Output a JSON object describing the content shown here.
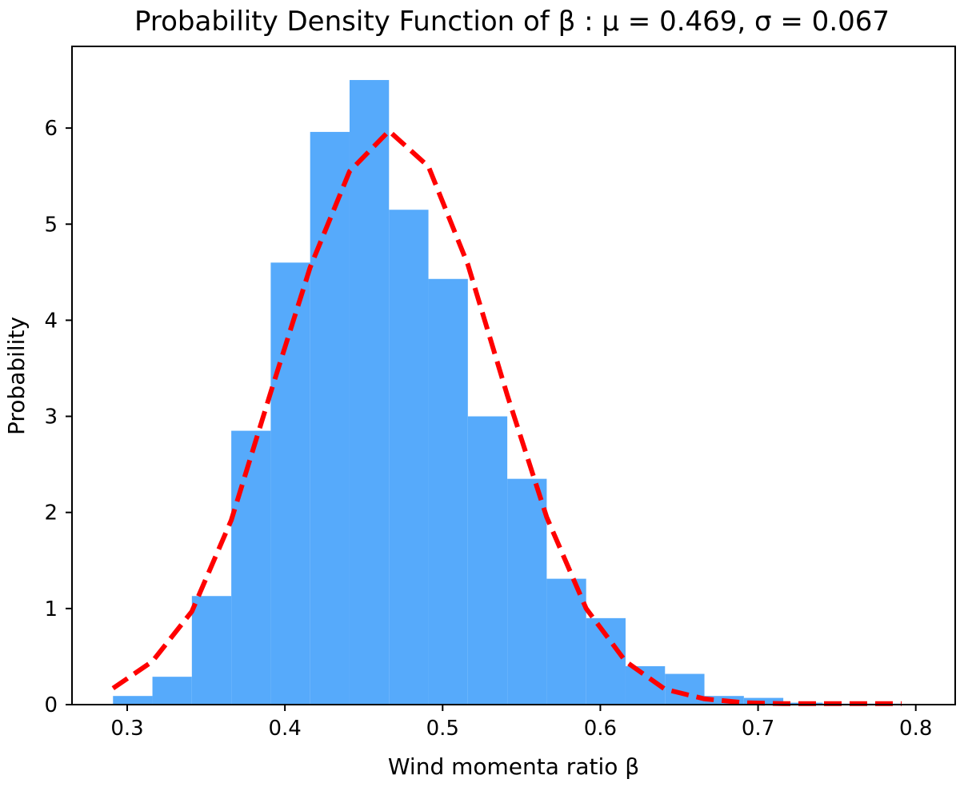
{
  "chart_data": {
    "type": "bar",
    "title": "Probability Density Function of β :  μ = 0.469,  σ = 0.067",
    "xlabel": "Wind momenta ratio β",
    "ylabel": "Probability",
    "xlim": [
      0.265,
      0.825
    ],
    "ylim": [
      0,
      6.85
    ],
    "xticks": [
      0.3,
      0.4,
      0.5,
      0.6,
      0.7,
      0.8
    ],
    "xtick_labels": [
      "0.3",
      "0.4",
      "0.5",
      "0.6",
      "0.7",
      "0.8"
    ],
    "yticks": [
      0,
      1,
      2,
      3,
      4,
      5,
      6
    ],
    "ytick_labels": [
      "0",
      "1",
      "2",
      "3",
      "4",
      "5",
      "6"
    ],
    "grid": false,
    "series": [
      {
        "type": "histogram",
        "color": "#56aafb",
        "bins": [
          {
            "x0": 0.291,
            "x1": 0.316,
            "value": 0.09
          },
          {
            "x0": 0.316,
            "x1": 0.341,
            "value": 0.29
          },
          {
            "x0": 0.341,
            "x1": 0.366,
            "value": 1.13
          },
          {
            "x0": 0.366,
            "x1": 0.391,
            "value": 2.85
          },
          {
            "x0": 0.391,
            "x1": 0.416,
            "value": 4.6
          },
          {
            "x0": 0.416,
            "x1": 0.441,
            "value": 5.96
          },
          {
            "x0": 0.441,
            "x1": 0.466,
            "value": 6.5
          },
          {
            "x0": 0.466,
            "x1": 0.491,
            "value": 5.15
          },
          {
            "x0": 0.491,
            "x1": 0.516,
            "value": 4.43
          },
          {
            "x0": 0.516,
            "x1": 0.541,
            "value": 3.0
          },
          {
            "x0": 0.541,
            "x1": 0.566,
            "value": 2.35
          },
          {
            "x0": 0.566,
            "x1": 0.591,
            "value": 1.31
          },
          {
            "x0": 0.591,
            "x1": 0.616,
            "value": 0.9
          },
          {
            "x0": 0.616,
            "x1": 0.641,
            "value": 0.4
          },
          {
            "x0": 0.641,
            "x1": 0.666,
            "value": 0.32
          },
          {
            "x0": 0.666,
            "x1": 0.691,
            "value": 0.09
          },
          {
            "x0": 0.691,
            "x1": 0.716,
            "value": 0.07
          },
          {
            "x0": 0.716,
            "x1": 0.741,
            "value": 0.02
          },
          {
            "x0": 0.741,
            "x1": 0.766,
            "value": 0.01
          },
          {
            "x0": 0.766,
            "x1": 0.791,
            "value": 0.01
          }
        ]
      },
      {
        "type": "line",
        "style": "dashed",
        "color": "#ff0000",
        "x": [
          0.291,
          0.316,
          0.341,
          0.366,
          0.391,
          0.416,
          0.441,
          0.466,
          0.491,
          0.516,
          0.541,
          0.566,
          0.591,
          0.616,
          0.641,
          0.666,
          0.691,
          0.716,
          0.741,
          0.766,
          0.791
        ],
        "y": [
          0.17,
          0.45,
          0.97,
          1.92,
          3.25,
          4.55,
          5.55,
          5.97,
          5.6,
          4.58,
          3.22,
          1.95,
          1.0,
          0.45,
          0.16,
          0.06,
          0.02,
          0.01,
          0.01,
          0.01,
          0.01
        ]
      }
    ]
  }
}
